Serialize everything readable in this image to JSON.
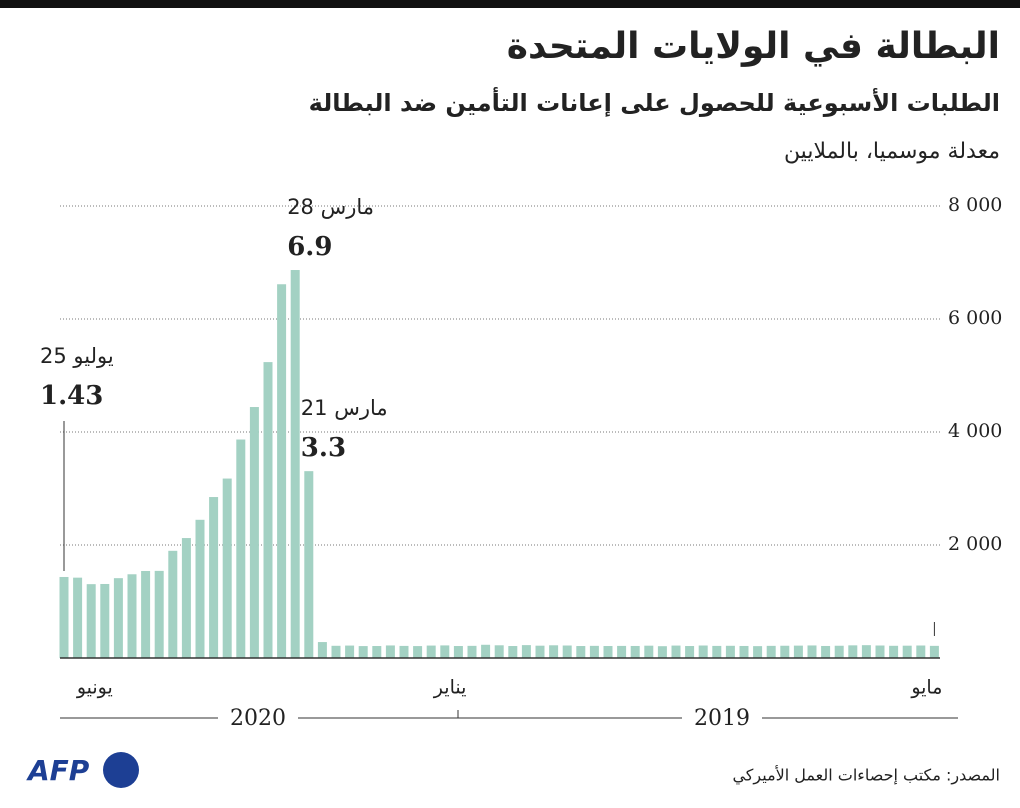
{
  "chart_data": {
    "type": "bar",
    "title": "البطالة في الولايات المتحدة",
    "subtitle": "الطلبات الأسبوعية للحصول على إعانات التأمين ضد البطالة",
    "note": "معدلة موسميا، بالملايين",
    "source": "المصدر: مكتب إحصاءات العمل الأميركي",
    "logo": "AFP",
    "color": "#a3d1c3",
    "grid": true,
    "ylim": [
      0,
      8000
    ],
    "yticks": [
      {
        "value": 2000,
        "label": "2 000"
      },
      {
        "value": 4000,
        "label": "4 000"
      },
      {
        "value": 6000,
        "label": "6 000"
      },
      {
        "value": 8000,
        "label": "8 000"
      }
    ],
    "years": [
      "2020",
      "2019"
    ],
    "categories": [
      null,
      null,
      null,
      "يونيو",
      null,
      null,
      null,
      null,
      null,
      null,
      null,
      null,
      null,
      null,
      null,
      null,
      null,
      null,
      null,
      null,
      null,
      null,
      null,
      null,
      null,
      null,
      null,
      null,
      null,
      "يناير",
      null,
      null,
      null,
      null,
      null,
      null,
      null,
      null,
      null,
      null,
      null,
      null,
      null,
      null,
      null,
      null,
      null,
      null,
      null,
      null,
      null,
      null,
      null,
      null,
      null,
      null,
      null,
      null,
      null,
      null,
      null,
      null,
      null,
      null,
      "مايو"
    ],
    "values": [
      1434,
      1422,
      1307,
      1310,
      1413,
      1482,
      1540,
      1542,
      1897,
      2123,
      2446,
      2849,
      3176,
      3867,
      4442,
      5237,
      6615,
      6867,
      3307,
      282,
      216,
      220,
      211,
      212,
      222,
      214,
      211,
      220,
      223,
      212,
      215,
      234,
      225,
      212,
      228,
      218,
      225,
      221,
      212,
      215,
      212,
      214,
      213,
      218,
      209,
      220,
      212,
      221,
      214,
      216,
      213,
      210,
      215,
      217,
      219,
      222,
      213,
      217,
      224,
      227,
      221,
      216,
      218,
      221,
      215
    ],
    "value_labels": [
      "1.43",
      null,
      null,
      null,
      null,
      null,
      null,
      null,
      null,
      null,
      null,
      null,
      null,
      null,
      null,
      null,
      null,
      "6.9",
      "3.3",
      null,
      null,
      null,
      null,
      null,
      null,
      null,
      null,
      null,
      null,
      null,
      null,
      null,
      null,
      null,
      null,
      null,
      null,
      null,
      null,
      null,
      null,
      null,
      null,
      null,
      null,
      null,
      null,
      null,
      null,
      null,
      null,
      null,
      null,
      null,
      null,
      null,
      null,
      null,
      null,
      null,
      null,
      null,
      null,
      null,
      null
    ],
    "date_labels": [
      "25 يوليو",
      null,
      null,
      null,
      null,
      null,
      null,
      null,
      null,
      null,
      null,
      null,
      null,
      null,
      null,
      null,
      null,
      "28 مارس",
      "21 مارس",
      null,
      null,
      null,
      null,
      null,
      null,
      null,
      null,
      null,
      null,
      null,
      null,
      null,
      null,
      null,
      null,
      null,
      null,
      null,
      null,
      null,
      null,
      null,
      null,
      null,
      null,
      null,
      null,
      null,
      null,
      null,
      null,
      null,
      null,
      null,
      null,
      null,
      null,
      null,
      null,
      null,
      null,
      null,
      null,
      null,
      null
    ]
  }
}
